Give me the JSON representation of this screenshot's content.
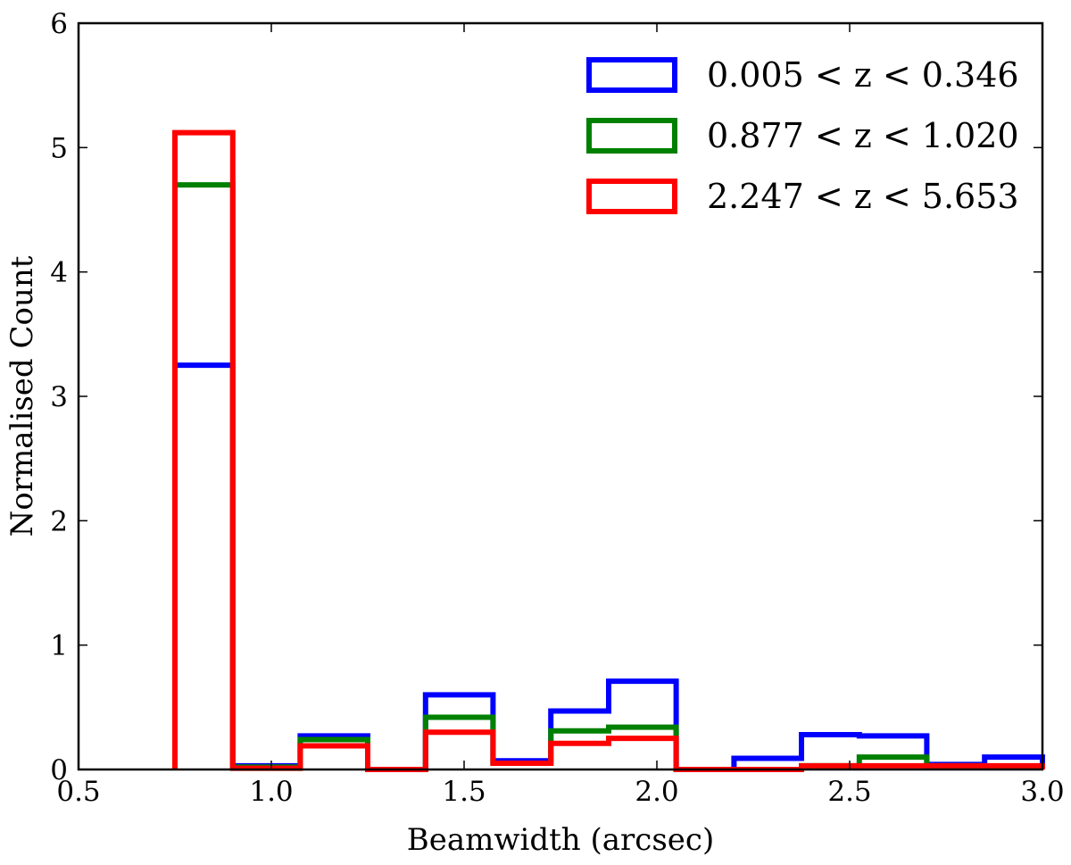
{
  "chart_data": {
    "type": "histogram-step",
    "title": "",
    "xlabel": "Beamwidth (arcsec)",
    "ylabel": "Normalised Count",
    "xlim": [
      0.5,
      3.0
    ],
    "ylim": [
      0,
      6
    ],
    "xticks": [
      "0.5",
      "1.0",
      "1.5",
      "2.0",
      "2.5",
      "3.0"
    ],
    "yticks": [
      "0",
      "1",
      "2",
      "3",
      "4",
      "5",
      "6"
    ],
    "grid": false,
    "legend_position": "top-right",
    "bin_edges": [
      0.75,
      0.9,
      1.075,
      1.25,
      1.4,
      1.575,
      1.725,
      1.875,
      2.05,
      2.2,
      2.375,
      2.525,
      2.7,
      2.85,
      3.0
    ],
    "series": [
      {
        "name": "0.005 < z < 0.346",
        "color": "#0000ff",
        "values": [
          3.25,
          0.03,
          0.27,
          0.0,
          0.6,
          0.07,
          0.47,
          0.71,
          0.0,
          0.09,
          0.28,
          0.27,
          0.04,
          0.1
        ]
      },
      {
        "name": "0.877 < z < 1.020",
        "color": "#008000",
        "values": [
          4.7,
          0.02,
          0.24,
          0.0,
          0.42,
          0.05,
          0.31,
          0.34,
          0.0,
          0.0,
          0.03,
          0.1,
          0.03,
          0.02
        ]
      },
      {
        "name": "2.247 < z < 5.653",
        "color": "#ff0000",
        "values": [
          5.12,
          0.01,
          0.19,
          0.0,
          0.3,
          0.05,
          0.21,
          0.25,
          0.0,
          0.0,
          0.03,
          0.03,
          0.03,
          0.03
        ]
      }
    ]
  }
}
